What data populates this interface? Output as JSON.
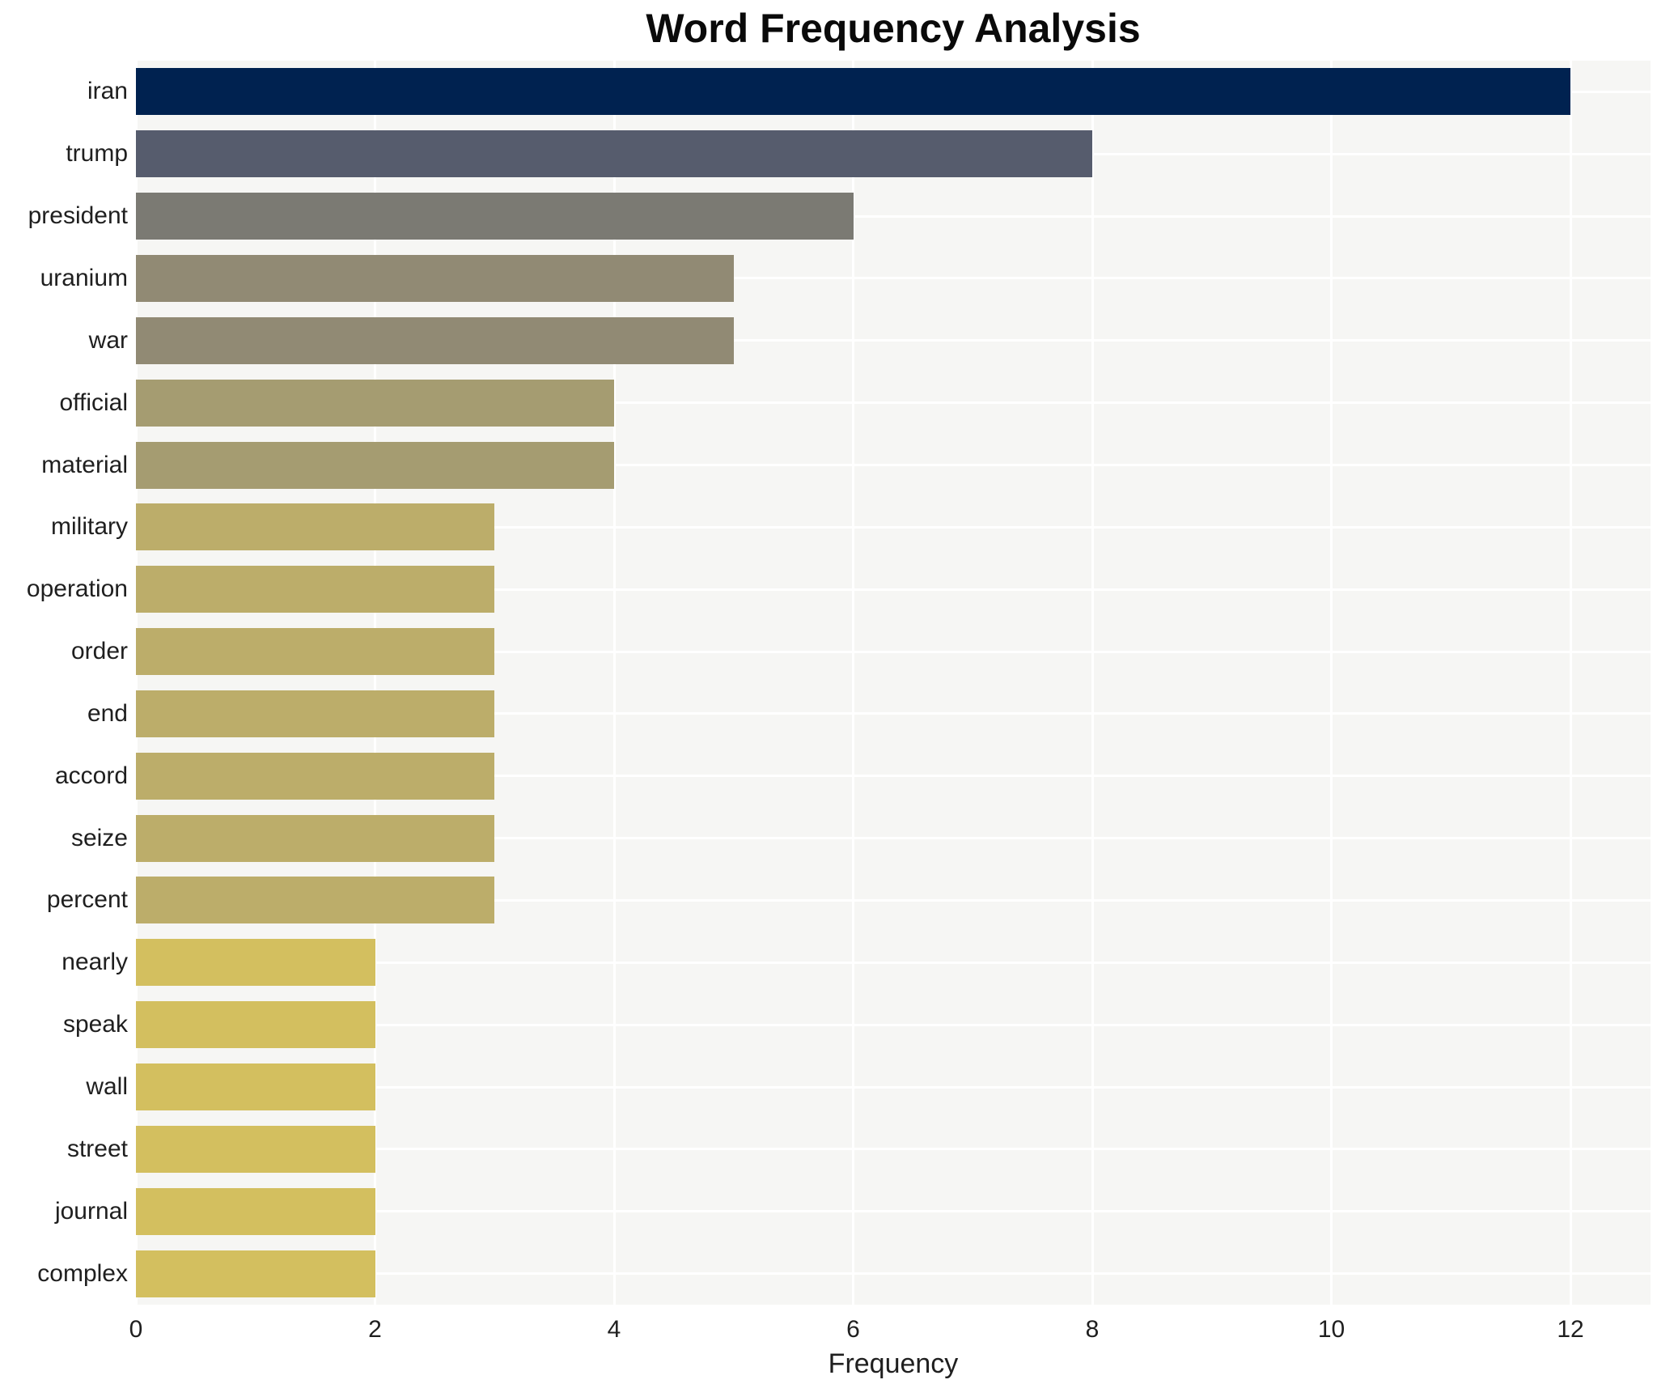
{
  "title": "Word Frequency Analysis",
  "chart_data": {
    "type": "bar",
    "orientation": "horizontal",
    "title": "Word Frequency Analysis",
    "xlabel": "Frequency",
    "ylabel": "",
    "categories": [
      "iran",
      "trump",
      "president",
      "uranium",
      "war",
      "official",
      "material",
      "military",
      "operation",
      "order",
      "end",
      "accord",
      "seize",
      "percent",
      "nearly",
      "speak",
      "wall",
      "street",
      "journal",
      "complex"
    ],
    "values": [
      12,
      8,
      6,
      5,
      5,
      4,
      4,
      3,
      3,
      3,
      3,
      3,
      3,
      3,
      2,
      2,
      2,
      2,
      2,
      2
    ],
    "bar_colors": [
      "#002250",
      "#565c6d",
      "#7b7a73",
      "#918a74",
      "#918a74",
      "#a59c71",
      "#a59c71",
      "#bcad6a",
      "#bcad6a",
      "#bcad6a",
      "#bcad6a",
      "#bcad6a",
      "#bcad6a",
      "#bcad6a",
      "#d3bf5f",
      "#d3bf5f",
      "#d3bf5f",
      "#d3bf5f",
      "#d3bf5f",
      "#d3bf5f"
    ],
    "x_ticks": [
      0,
      2,
      4,
      6,
      8,
      10,
      12
    ],
    "xlim": [
      0,
      12.67
    ],
    "grid": true,
    "grid_color": "#ffffff",
    "plot_background": "#f6f6f4",
    "legend": "none"
  }
}
